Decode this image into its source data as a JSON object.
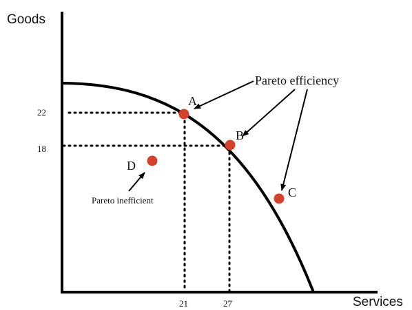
{
  "axes": {
    "y_title": "Goods",
    "x_title": "Services"
  },
  "ticks": {
    "y": [
      "22",
      "18"
    ],
    "x": [
      "21",
      "27"
    ]
  },
  "points": [
    {
      "label": "A",
      "color": "#d6412c"
    },
    {
      "label": "B",
      "color": "#d6412c"
    },
    {
      "label": "C",
      "color": "#d6412c"
    },
    {
      "label": "D",
      "color": "#d6412c"
    }
  ],
  "annotations": {
    "efficient": "Pareto efficiency",
    "inefficient": "Pareto inefficient"
  }
}
